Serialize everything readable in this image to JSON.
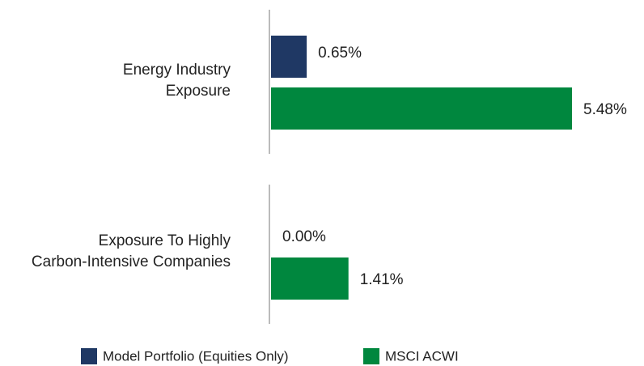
{
  "chart_data": {
    "type": "bar",
    "orientation": "horizontal",
    "categories": [
      [
        "Energy Industry",
        "Exposure"
      ],
      [
        "Exposure To Highly",
        "Carbon-Intensive Companies"
      ]
    ],
    "series": [
      {
        "name": "Model Portfolio (Equities Only)",
        "color": "#1f3864",
        "values": [
          0.65,
          0.0
        ],
        "value_labels": [
          "0.65%",
          "0.00%"
        ]
      },
      {
        "name": "MSCI ACWI",
        "color": "#00873e",
        "values": [
          5.48,
          1.41
        ],
        "value_labels": [
          "5.48%",
          "1.41%"
        ]
      }
    ]
  }
}
